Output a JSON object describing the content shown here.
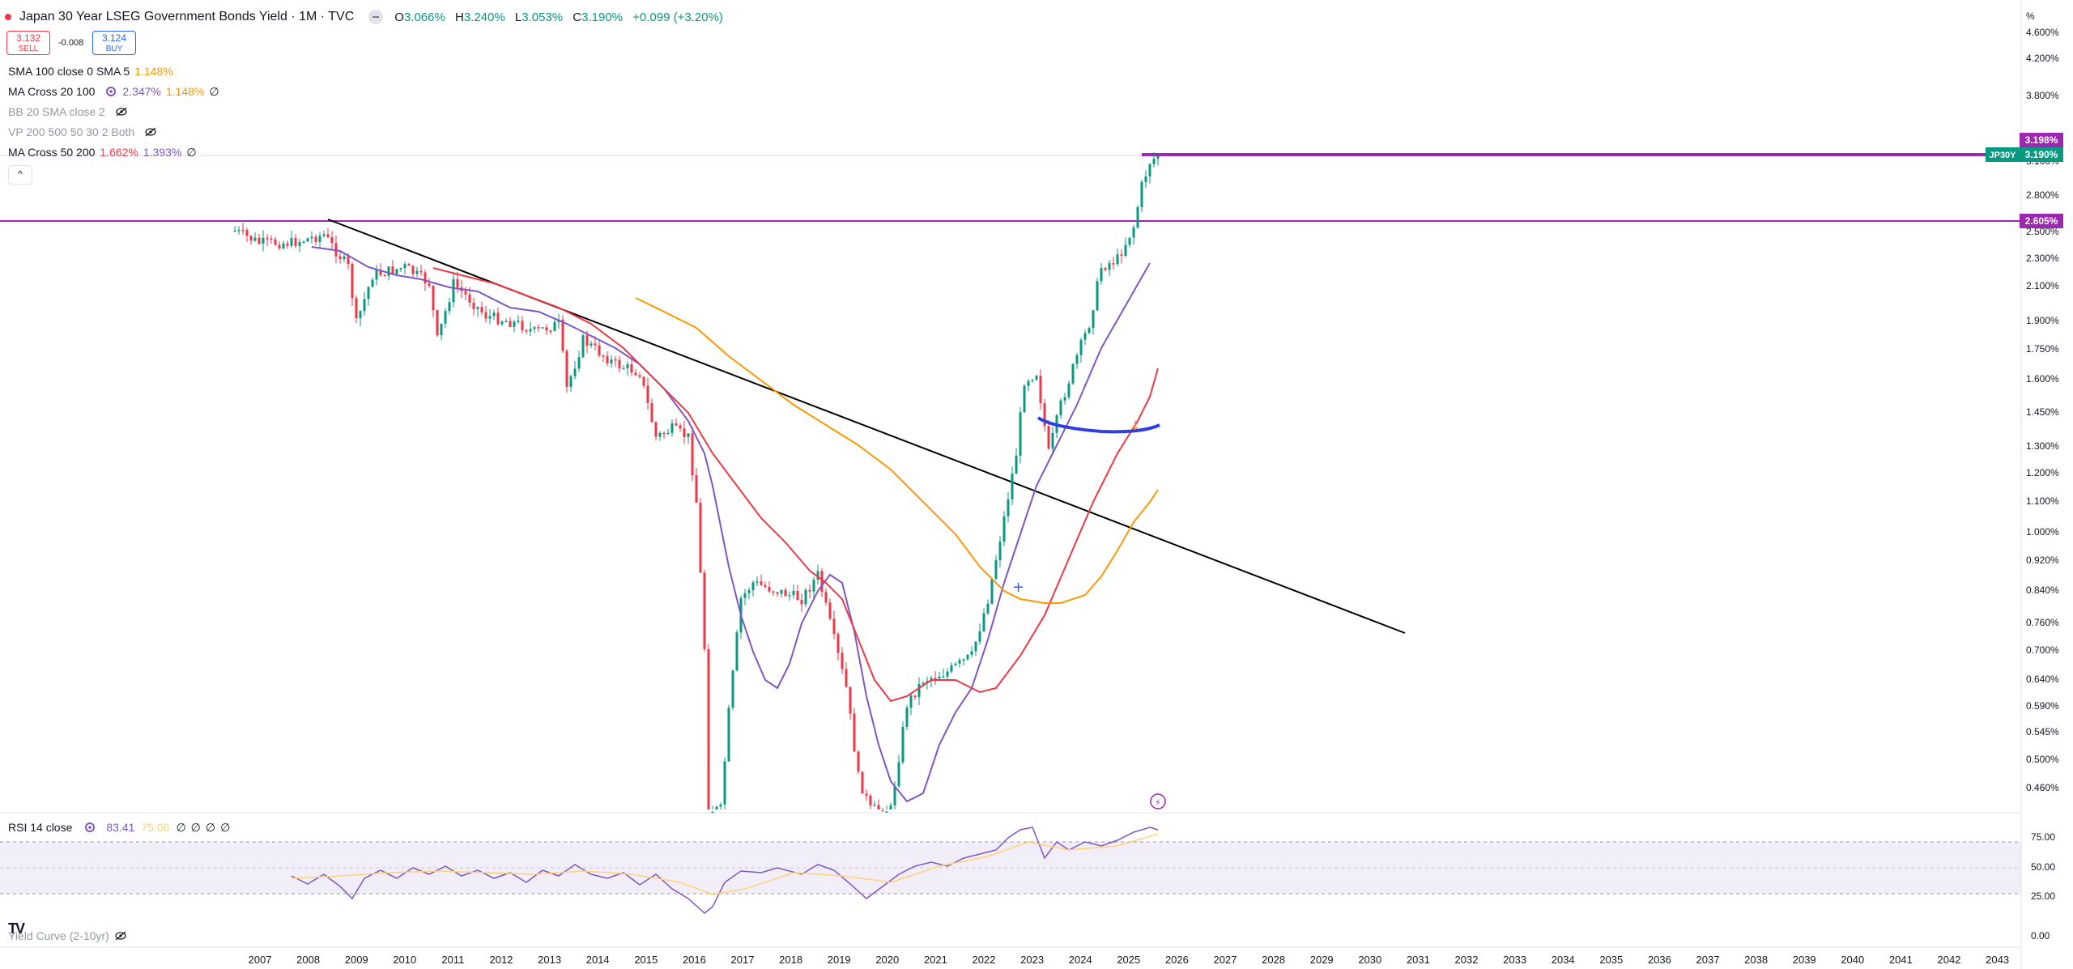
{
  "header": {
    "title": "Japan 30 Year LSEG Government Bonds Yield · 1M · TVC",
    "ohlc": {
      "o_label": "O",
      "o_value": "3.066%",
      "h_label": "H",
      "h_value": "3.240%",
      "l_label": "L",
      "l_value": "3.053%",
      "c_label": "C",
      "c_value": "3.190%",
      "change": "+0.099 (+3.20%)"
    }
  },
  "trade": {
    "sell_price": "3.132",
    "sell_label": "SELL",
    "spread": "-0.008",
    "buy_price": "3.124",
    "buy_label": "BUY"
  },
  "indicators": [
    {
      "name": "SMA 100 close 0 SMA 5",
      "values": [
        "1.148%"
      ]
    },
    {
      "name": "MA Cross 20 100",
      "values": [
        "2.347%",
        "1.148%",
        "∅"
      ]
    },
    {
      "name": "BB 20 SMA close 2",
      "values": []
    },
    {
      "name": "VP 200 500 50 30 2 Both",
      "values": []
    },
    {
      "name": "MA Cross 50 200",
      "values": [
        "1.662%",
        "1.393%",
        "∅"
      ]
    }
  ],
  "collapse_label": "^",
  "rsi": {
    "name": "RSI 14 close",
    "value": "83.41",
    "ma_value": "75.06",
    "nulls": [
      "∅",
      "∅",
      "∅",
      "∅"
    ]
  },
  "yield_curve_label": "Yield Curve (2-10yr)",
  "logo_text": "TV",
  "price_scale": {
    "unit": "%",
    "ticks": [
      "4.600%",
      "4.200%",
      "3.800%",
      "3.100%",
      "2.800%",
      "2.500%",
      "2.300%",
      "2.100%",
      "1.900%",
      "1.750%",
      "1.600%",
      "1.450%",
      "1.300%",
      "1.200%",
      "1.100%",
      "1.000%",
      "0.920%",
      "0.840%",
      "0.760%",
      "0.700%",
      "0.640%",
      "0.590%",
      "0.545%",
      "0.500%",
      "0.460%"
    ]
  },
  "price_tags": {
    "top": "3.198%",
    "symbol": "JP30Y",
    "last": "3.190%",
    "resistance": "2.605%"
  },
  "rsi_scale": [
    "75.00",
    "50.00",
    "25.00",
    "0.00"
  ],
  "time_axis": [
    "2007",
    "2008",
    "2009",
    "2010",
    "2011",
    "2012",
    "2013",
    "2014",
    "2015",
    "2016",
    "2017",
    "2018",
    "2019",
    "2020",
    "2021",
    "2022",
    "2023",
    "2024",
    "2025",
    "2026",
    "2027",
    "2028",
    "2029",
    "2030",
    "2031",
    "2032",
    "2033",
    "2034",
    "2035",
    "2036",
    "2037",
    "2038",
    "2039",
    "2040",
    "2041",
    "2042",
    "2043"
  ],
  "colors": {
    "up": "#089981",
    "down": "#f23645",
    "ma_purple": "#7e57c2",
    "ma_red": "#f23645",
    "ma_orange": "#ff9800",
    "hline": "#9c27b0",
    "trend": "#000000",
    "blue_curve": "#2f3ee0",
    "rsi": "#7e57c2",
    "rsi_ma": "#ffd27a"
  },
  "chart_data": {
    "type": "candlestick",
    "interval": "1M",
    "y_scale": "log",
    "x": [
      "2007-01",
      "2008-01",
      "2009-01",
      "2010-01",
      "2011-01",
      "2012-01",
      "2013-01",
      "2014-01",
      "2015-01",
      "2016-01",
      "2016-07",
      "2017-01",
      "2018-01",
      "2019-01",
      "2020-01",
      "2021-01",
      "2022-01",
      "2023-01",
      "2024-01",
      "2025-01",
      "2025-08"
    ],
    "close": [
      2.45,
      2.4,
      2.1,
      2.3,
      2.2,
      2.0,
      1.8,
      1.7,
      1.4,
      1.1,
      0.2,
      0.85,
      0.8,
      0.65,
      0.4,
      0.65,
      0.75,
      1.3,
      1.7,
      2.3,
      3.19
    ],
    "horizontal_levels": [
      3.198,
      2.605
    ],
    "rsi_last": 83.41,
    "rsi_ma_last": 75.06
  }
}
